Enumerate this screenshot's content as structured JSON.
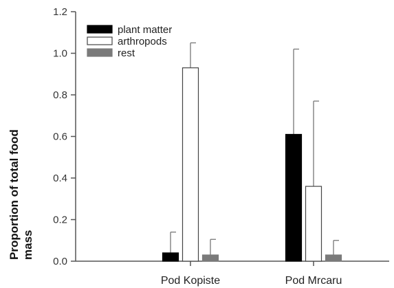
{
  "chart_data": {
    "type": "bar",
    "categories": [
      "Pod Kopiste",
      "Pod Mrcaru"
    ],
    "series": [
      {
        "name": "plant matter",
        "values": [
          0.04,
          0.61
        ],
        "errors": [
          0.1,
          0.41
        ],
        "color": "#000000"
      },
      {
        "name": "arthropods",
        "values": [
          0.93,
          0.36
        ],
        "errors": [
          0.12,
          0.41
        ],
        "color": "#ffffff"
      },
      {
        "name": "rest",
        "values": [
          0.03,
          0.03
        ],
        "errors": [
          0.075,
          0.07
        ],
        "color": "#7a7a7a"
      }
    ],
    "ylabel_line1": "Proportion of total food",
    "ylabel_line2": "mass",
    "xlabel": "",
    "ylim": [
      0,
      1.2
    ],
    "yticks": [
      "0.0",
      "0.2",
      "0.4",
      "0.6",
      "0.8",
      "1.0",
      "1.2"
    ],
    "legend_position": "top-left",
    "grid": false
  }
}
